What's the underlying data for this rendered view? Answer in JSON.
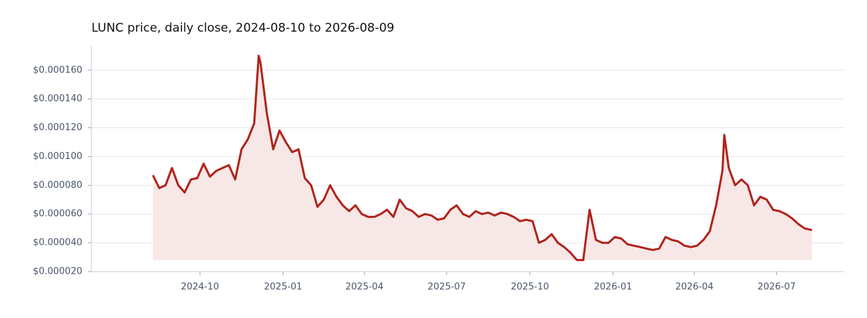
{
  "chart_data": {
    "type": "area",
    "title": "LUNC price, daily close, 2024-08-10 to 2026-08-09",
    "color": "#b0231b",
    "fill": "#f7e7e6",
    "grid": true,
    "x": [
      "2024-08-10",
      "2024-08-17",
      "2024-08-24",
      "2024-08-31",
      "2024-09-07",
      "2024-09-14",
      "2024-09-21",
      "2024-09-28",
      "2024-10-05",
      "2024-10-12",
      "2024-10-19",
      "2024-10-26",
      "2024-11-02",
      "2024-11-09",
      "2024-11-16",
      "2024-11-23",
      "2024-11-30",
      "2024-12-05",
      "2024-12-07",
      "2024-12-14",
      "2024-12-21",
      "2024-12-28",
      "2025-01-04",
      "2025-01-11",
      "2025-01-18",
      "2025-01-25",
      "2025-02-01",
      "2025-02-08",
      "2025-02-15",
      "2025-02-22",
      "2025-03-01",
      "2025-03-08",
      "2025-03-15",
      "2025-03-22",
      "2025-03-29",
      "2025-04-05",
      "2025-04-12",
      "2025-04-19",
      "2025-04-26",
      "2025-05-03",
      "2025-05-10",
      "2025-05-17",
      "2025-05-24",
      "2025-05-31",
      "2025-06-07",
      "2025-06-14",
      "2025-06-21",
      "2025-06-28",
      "2025-07-05",
      "2025-07-12",
      "2025-07-19",
      "2025-07-26",
      "2025-08-02",
      "2025-08-09",
      "2025-08-16",
      "2025-08-23",
      "2025-08-30",
      "2025-09-06",
      "2025-09-13",
      "2025-09-20",
      "2025-09-27",
      "2025-10-04",
      "2025-10-11",
      "2025-10-18",
      "2025-10-25",
      "2025-11-01",
      "2025-11-08",
      "2025-11-15",
      "2025-11-22",
      "2025-11-29",
      "2025-12-06",
      "2025-12-13",
      "2025-12-20",
      "2025-12-27",
      "2026-01-03",
      "2026-01-10",
      "2026-01-17",
      "2026-01-24",
      "2026-01-31",
      "2026-02-07",
      "2026-02-14",
      "2026-02-21",
      "2026-02-28",
      "2026-03-07",
      "2026-03-14",
      "2026-03-21",
      "2026-03-28",
      "2026-04-04",
      "2026-04-11",
      "2026-04-18",
      "2026-04-25",
      "2026-05-02",
      "2026-05-04",
      "2026-05-09",
      "2026-05-16",
      "2026-05-23",
      "2026-05-30",
      "2026-06-06",
      "2026-06-13",
      "2026-06-20",
      "2026-06-27",
      "2026-07-04",
      "2026-07-11",
      "2026-07-18",
      "2026-07-25",
      "2026-08-01",
      "2026-08-08",
      "2026-08-09"
    ],
    "values": [
      8.7e-05,
      7.8e-05,
      8e-05,
      9.2e-05,
      8e-05,
      7.5e-05,
      8.4e-05,
      8.5e-05,
      9.5e-05,
      8.6e-05,
      9e-05,
      9.2e-05,
      9.4e-05,
      8.4e-05,
      0.000105,
      0.000112,
      0.000123,
      0.00017,
      0.000165,
      0.00013,
      0.000105,
      0.000118,
      0.00011,
      0.000103,
      0.000105,
      8.5e-05,
      8e-05,
      6.5e-05,
      7e-05,
      8e-05,
      7.2e-05,
      6.6e-05,
      6.2e-05,
      6.6e-05,
      6e-05,
      5.8e-05,
      5.8e-05,
      6e-05,
      6.3e-05,
      5.8e-05,
      7e-05,
      6.4e-05,
      6.2e-05,
      5.8e-05,
      6e-05,
      5.9e-05,
      5.6e-05,
      5.7e-05,
      6.3e-05,
      6.6e-05,
      6e-05,
      5.8e-05,
      6.2e-05,
      6e-05,
      6.1e-05,
      5.9e-05,
      6.1e-05,
      6e-05,
      5.8e-05,
      5.5e-05,
      5.6e-05,
      5.5e-05,
      4e-05,
      4.2e-05,
      4.6e-05,
      4e-05,
      3.7e-05,
      3.3e-05,
      2.8e-05,
      2.8e-05,
      6.3e-05,
      4.2e-05,
      4e-05,
      4e-05,
      4.4e-05,
      4.3e-05,
      3.9e-05,
      3.8e-05,
      3.7e-05,
      3.6e-05,
      3.5e-05,
      3.6e-05,
      4.4e-05,
      4.2e-05,
      4.1e-05,
      3.8e-05,
      3.7e-05,
      3.8e-05,
      4.2e-05,
      4.8e-05,
      6.6e-05,
      9e-05,
      0.000115,
      9.2e-05,
      8e-05,
      8.4e-05,
      8e-05,
      6.6e-05,
      7.2e-05,
      7e-05,
      6.3e-05,
      6.2e-05,
      6e-05,
      5.7e-05,
      5.3e-05,
      5e-05,
      4.9e-05,
      4.9e-05
    ],
    "xlim": [
      "2024-06-03",
      "2026-09-14"
    ],
    "xticks": [
      {
        "value": "2024-10-01",
        "label": "2024-10"
      },
      {
        "value": "2025-01-01",
        "label": "2025-01"
      },
      {
        "value": "2025-04-01",
        "label": "2025-04"
      },
      {
        "value": "2025-07-01",
        "label": "2025-07"
      },
      {
        "value": "2025-10-01",
        "label": "2025-10"
      },
      {
        "value": "2026-01-01",
        "label": "2026-01"
      },
      {
        "value": "2026-04-01",
        "label": "2026-04"
      },
      {
        "value": "2026-07-01",
        "label": "2026-07"
      }
    ],
    "ylim": [
      2e-05,
      0.000177
    ],
    "yticks": [
      {
        "value": 2e-05,
        "label": "$0.000020"
      },
      {
        "value": 4e-05,
        "label": "$0.000040"
      },
      {
        "value": 6e-05,
        "label": "$0.000060"
      },
      {
        "value": 8e-05,
        "label": "$0.000080"
      },
      {
        "value": 0.0001,
        "label": "$0.000100"
      },
      {
        "value": 0.00012,
        "label": "$0.000120"
      },
      {
        "value": 0.00014,
        "label": "$0.000140"
      },
      {
        "value": 0.00016,
        "label": "$0.000160"
      }
    ]
  }
}
